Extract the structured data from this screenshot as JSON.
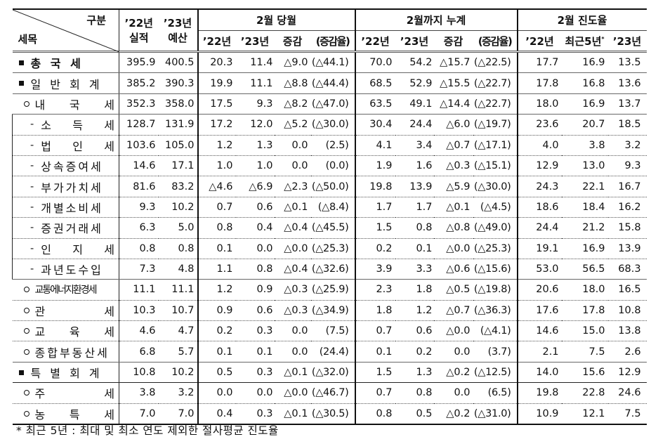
{
  "table": {
    "header": {
      "corner_top": "구분",
      "corner_bottom": "세목",
      "col_22_line1": "’22년",
      "col_22_line2": "실적",
      "col_23_line1": "’23년",
      "col_23_line2": "예산",
      "group_month": "2월 당월",
      "group_cumulative": "2월까지 누계",
      "group_progress": "2월 진도율",
      "sub_month": [
        "’22년",
        "’23년",
        "증감",
        "(증감율)"
      ],
      "sub_cumulative": [
        "’22년",
        "’23년",
        "증감",
        "(증감율)"
      ],
      "sub_progress": [
        "’22년",
        "최근5년",
        "’23년"
      ],
      "sub_progress_mark": "*"
    },
    "rows": [
      {
        "bullet": "square",
        "name": "총 국 세",
        "bold": true,
        "values": [
          "395.9",
          "400.5",
          "20.3",
          "11.4",
          "△9.0",
          "(△44.1)",
          "70.0",
          "54.2",
          "△15.7",
          "(△22.5)",
          "17.7",
          "16.9",
          "13.5"
        ]
      },
      {
        "bullet": "square",
        "name": "일 반 회 계",
        "values": [
          "385.2",
          "390.3",
          "19.9",
          "11.1",
          "△8.8",
          "(△44.4)",
          "68.5",
          "52.9",
          "△15.5",
          "(△22.7)",
          "17.8",
          "16.8",
          "13.6"
        ]
      },
      {
        "bullet": "circle",
        "name": "내 국 세",
        "values": [
          "352.3",
          "358.0",
          "17.5",
          "9.3",
          "△8.2",
          "(△47.0)",
          "63.5",
          "49.1",
          "△14.4",
          "(△22.7)",
          "18.0",
          "16.9",
          "13.7"
        ]
      },
      {
        "bullet": "dash",
        "name": "소 득 세",
        "values": [
          "128.7",
          "131.9",
          "17.2",
          "12.0",
          "△5.2",
          "(△30.0)",
          "30.4",
          "24.4",
          "△6.0",
          "(△19.7)",
          "23.6",
          "20.7",
          "18.5"
        ]
      },
      {
        "bullet": "dash",
        "name": "법 인 세",
        "values": [
          "103.6",
          "105.0",
          "1.2",
          "1.3",
          "0.0",
          "(2.5)",
          "4.1",
          "3.4",
          "△0.7",
          "(△17.1)",
          "4.0",
          "3.8",
          "3.2"
        ]
      },
      {
        "bullet": "dash",
        "name": "상속증여세",
        "values": [
          "14.6",
          "17.1",
          "1.0",
          "1.0",
          "0.0",
          "(0.0)",
          "1.9",
          "1.6",
          "△0.3",
          "(△15.1)",
          "12.9",
          "13.0",
          "9.3"
        ]
      },
      {
        "bullet": "dash",
        "name": "부가가치세",
        "values": [
          "81.6",
          "83.2",
          "△4.6",
          "△6.9",
          "△2.3",
          "(△50.0)",
          "19.8",
          "13.9",
          "△5.9",
          "(△30.0)",
          "24.3",
          "22.1",
          "16.7"
        ]
      },
      {
        "bullet": "dash",
        "name": "개별소비세",
        "values": [
          "9.3",
          "10.2",
          "0.7",
          "0.6",
          "△0.1",
          "(△8.4)",
          "1.7",
          "1.7",
          "△0.1",
          "(△4.5)",
          "18.6",
          "18.4",
          "16.2"
        ]
      },
      {
        "bullet": "dash",
        "name": "증권거래세",
        "values": [
          "6.3",
          "5.0",
          "0.8",
          "0.4",
          "△0.4",
          "(△45.5)",
          "1.5",
          "0.8",
          "△0.8",
          "(△49.0)",
          "24.4",
          "21.2",
          "15.8"
        ]
      },
      {
        "bullet": "dash",
        "name": "인 지 세",
        "values": [
          "0.8",
          "0.8",
          "0.1",
          "0.0",
          "△0.0",
          "(△25.3)",
          "0.2",
          "0.1",
          "△0.0",
          "(△25.3)",
          "19.1",
          "16.9",
          "13.9"
        ]
      },
      {
        "bullet": "dash",
        "name": "과년도수입",
        "values": [
          "7.3",
          "4.8",
          "1.1",
          "0.8",
          "△0.4",
          "(△32.6)",
          "3.9",
          "3.3",
          "△0.6",
          "(△15.6)",
          "53.0",
          "56.5",
          "68.3"
        ]
      },
      {
        "bullet": "circle",
        "name": "교통에너지환경세",
        "values": [
          "11.1",
          "11.1",
          "1.2",
          "0.9",
          "△0.3",
          "(△25.9)",
          "2.3",
          "1.8",
          "△0.5",
          "(△19.8)",
          "20.6",
          "18.0",
          "16.5"
        ]
      },
      {
        "bullet": "circle",
        "name": "관 세",
        "values": [
          "10.3",
          "10.7",
          "0.9",
          "0.6",
          "△0.3",
          "(△34.9)",
          "1.8",
          "1.2",
          "△0.7",
          "(△36.3)",
          "17.6",
          "17.8",
          "10.8"
        ]
      },
      {
        "bullet": "circle",
        "name": "교 육 세",
        "values": [
          "4.6",
          "4.7",
          "0.2",
          "0.3",
          "0.0",
          "(7.5)",
          "0.7",
          "0.6",
          "△0.0",
          "(△4.1)",
          "14.6",
          "15.0",
          "13.8"
        ]
      },
      {
        "bullet": "circle",
        "name": "종합부동산세",
        "values": [
          "6.8",
          "5.7",
          "0.1",
          "0.1",
          "0.0",
          "(24.4)",
          "0.1",
          "0.2",
          "0.0",
          "(3.7)",
          "2.1",
          "7.5",
          "2.6"
        ]
      },
      {
        "bullet": "square",
        "name": "특 별 회 계",
        "values": [
          "10.8",
          "10.2",
          "0.5",
          "0.3",
          "△0.1",
          "(△32.0)",
          "1.5",
          "1.3",
          "△0.2",
          "(△12.5)",
          "14.0",
          "15.6",
          "12.9"
        ]
      },
      {
        "bullet": "circle",
        "name": "주 세",
        "values": [
          "3.8",
          "3.2",
          "0.0",
          "0.0",
          "△0.0",
          "(△46.7)",
          "0.7",
          "0.8",
          "0.0",
          "(6.5)",
          "19.8",
          "22.8",
          "24.6"
        ]
      },
      {
        "bullet": "circle",
        "name": "농 특 세",
        "values": [
          "7.0",
          "7.0",
          "0.4",
          "0.3",
          "△0.1",
          "(△30.5)",
          "0.8",
          "0.5",
          "△0.2",
          "(△31.0)",
          "10.9",
          "12.1",
          "7.5"
        ]
      }
    ]
  },
  "footnote": "* 최근 5년 : 최대 및 최소 연도 제외한 절사평균 진도율"
}
